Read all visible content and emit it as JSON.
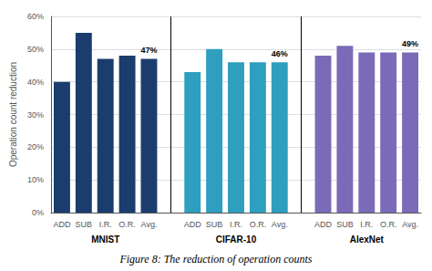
{
  "chart_data": {
    "type": "bar",
    "title": "Figure 8: The reduction of operation counts",
    "categories": [
      "ADD",
      "SUB",
      "I.R.",
      "O.R.",
      "Avg."
    ],
    "series": [
      {
        "name": "MNIST",
        "color": "#1b3d6e",
        "values": [
          40,
          55,
          47,
          48,
          47
        ]
      },
      {
        "name": "CIFAR-10",
        "color": "#2e9fbe",
        "values": [
          43,
          50,
          46,
          46,
          46
        ]
      },
      {
        "name": "AlexNet",
        "color": "#7b6ab8",
        "values": [
          48,
          51,
          49,
          49,
          49
        ]
      }
    ],
    "ylabel": "Operation count reduction",
    "ylim": [
      0,
      60
    ],
    "yticks": [
      {
        "value": 0,
        "label": "0%"
      },
      {
        "value": 10,
        "label": "10%"
      },
      {
        "value": 20,
        "label": "20%"
      },
      {
        "value": 30,
        "label": "30%"
      },
      {
        "value": 40,
        "label": "40%"
      },
      {
        "value": 50,
        "label": "50%"
      },
      {
        "value": 60,
        "label": "60%"
      }
    ],
    "grid": true,
    "annotations": [
      {
        "series": "MNIST",
        "category": "Avg.",
        "value": 47,
        "text": "47%"
      },
      {
        "series": "CIFAR-10",
        "category": "Avg.",
        "value": 46,
        "text": "46%"
      },
      {
        "series": "AlexNet",
        "category": "Avg.",
        "value": 49,
        "text": "49%"
      }
    ]
  }
}
